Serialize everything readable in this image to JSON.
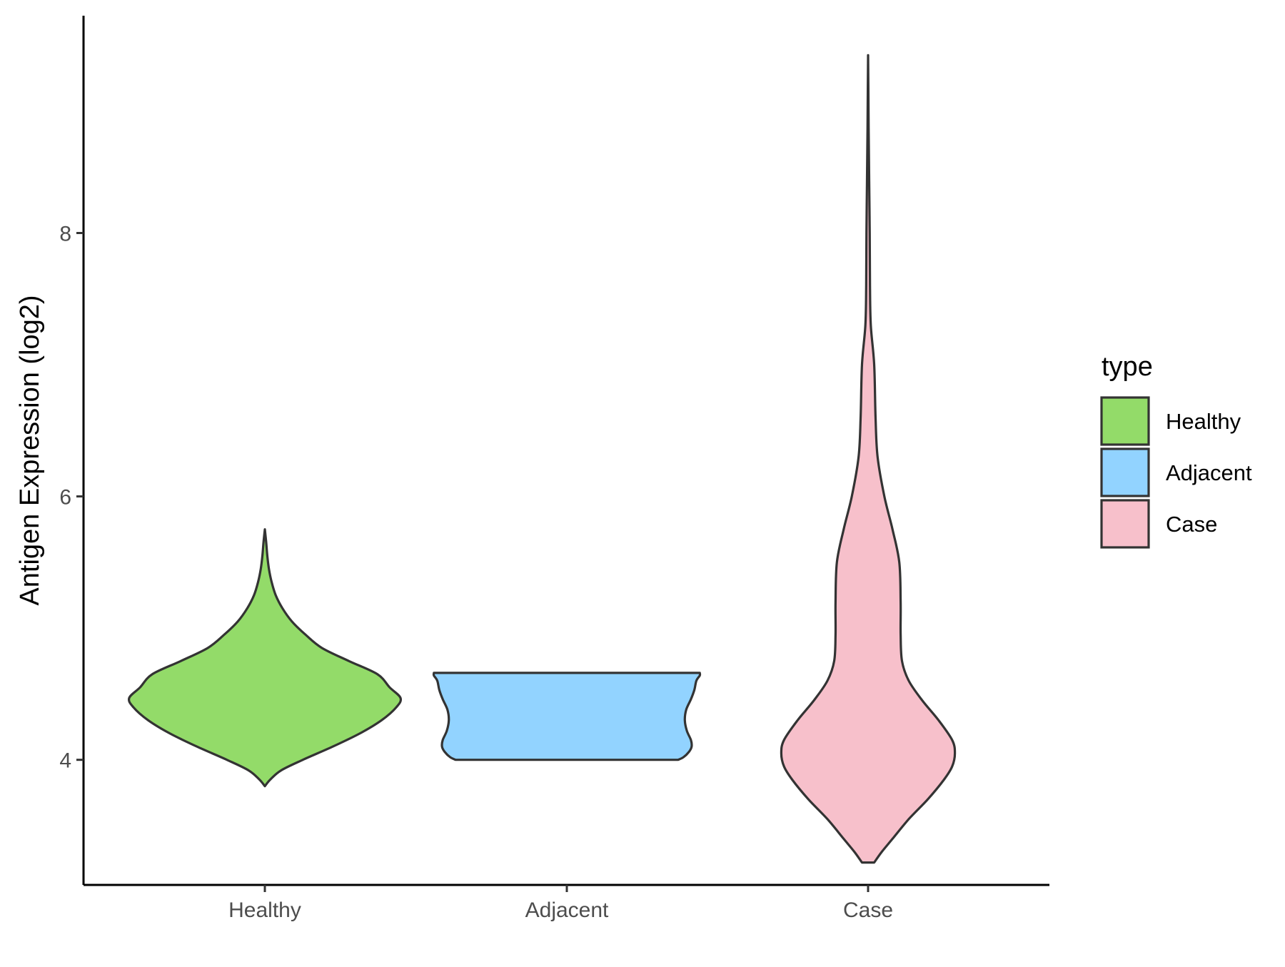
{
  "chart_data": {
    "type": "violin",
    "title": "",
    "xlabel": "",
    "ylabel": "Antigen Expression (log2)",
    "ylim": [
      3.05,
      9.65
    ],
    "yticks": [
      4,
      6,
      8
    ],
    "ytick_labels": [
      "4",
      "6",
      "8"
    ],
    "categories": [
      "Healthy",
      "Adjacent",
      "Case"
    ],
    "legend": {
      "title": "type",
      "position": "right",
      "entries": [
        "Healthy",
        "Adjacent",
        "Case"
      ]
    },
    "grid": false,
    "series": [
      {
        "name": "Healthy",
        "color": "#93DB69",
        "range": [
          3.8,
          5.75
        ],
        "profile": [
          [
            3.8,
            0.0
          ],
          [
            3.85,
            0.04
          ],
          [
            3.92,
            0.12
          ],
          [
            4.0,
            0.28
          ],
          [
            4.1,
            0.5
          ],
          [
            4.2,
            0.7
          ],
          [
            4.3,
            0.86
          ],
          [
            4.4,
            0.97
          ],
          [
            4.47,
            1.0
          ],
          [
            4.55,
            0.92
          ],
          [
            4.65,
            0.83
          ],
          [
            4.75,
            0.62
          ],
          [
            4.85,
            0.42
          ],
          [
            4.95,
            0.3
          ],
          [
            5.05,
            0.2
          ],
          [
            5.15,
            0.13
          ],
          [
            5.25,
            0.08
          ],
          [
            5.35,
            0.05
          ],
          [
            5.45,
            0.03
          ],
          [
            5.55,
            0.018
          ],
          [
            5.65,
            0.01
          ],
          [
            5.75,
            0.0
          ]
        ]
      },
      {
        "name": "Adjacent",
        "color": "#92D3FF",
        "range": [
          4.0,
          4.66
        ],
        "profile": [
          [
            4.0,
            0.82
          ],
          [
            4.02,
            0.86
          ],
          [
            4.06,
            0.9
          ],
          [
            4.1,
            0.92
          ],
          [
            4.15,
            0.915
          ],
          [
            4.22,
            0.885
          ],
          [
            4.3,
            0.87
          ],
          [
            4.38,
            0.88
          ],
          [
            4.46,
            0.915
          ],
          [
            4.53,
            0.94
          ],
          [
            4.6,
            0.955
          ],
          [
            4.64,
            0.98
          ],
          [
            4.66,
            0.98
          ]
        ]
      },
      {
        "name": "Case",
        "color": "#F7C0CB",
        "range": [
          3.22,
          9.35
        ],
        "profile": [
          [
            3.22,
            0.045
          ],
          [
            3.3,
            0.1
          ],
          [
            3.4,
            0.18
          ],
          [
            3.55,
            0.3
          ],
          [
            3.7,
            0.44
          ],
          [
            3.85,
            0.56
          ],
          [
            3.95,
            0.62
          ],
          [
            4.05,
            0.64
          ],
          [
            4.15,
            0.62
          ],
          [
            4.3,
            0.52
          ],
          [
            4.45,
            0.4
          ],
          [
            4.6,
            0.3
          ],
          [
            4.75,
            0.25
          ],
          [
            4.95,
            0.24
          ],
          [
            5.2,
            0.24
          ],
          [
            5.5,
            0.23
          ],
          [
            5.75,
            0.18
          ],
          [
            6.0,
            0.12
          ],
          [
            6.3,
            0.07
          ],
          [
            6.6,
            0.055
          ],
          [
            7.0,
            0.045
          ],
          [
            7.3,
            0.02
          ],
          [
            7.6,
            0.014
          ],
          [
            8.0,
            0.012
          ],
          [
            8.4,
            0.008
          ],
          [
            8.8,
            0.004
          ],
          [
            9.1,
            0.002
          ],
          [
            9.35,
            0.0
          ]
        ]
      }
    ]
  }
}
